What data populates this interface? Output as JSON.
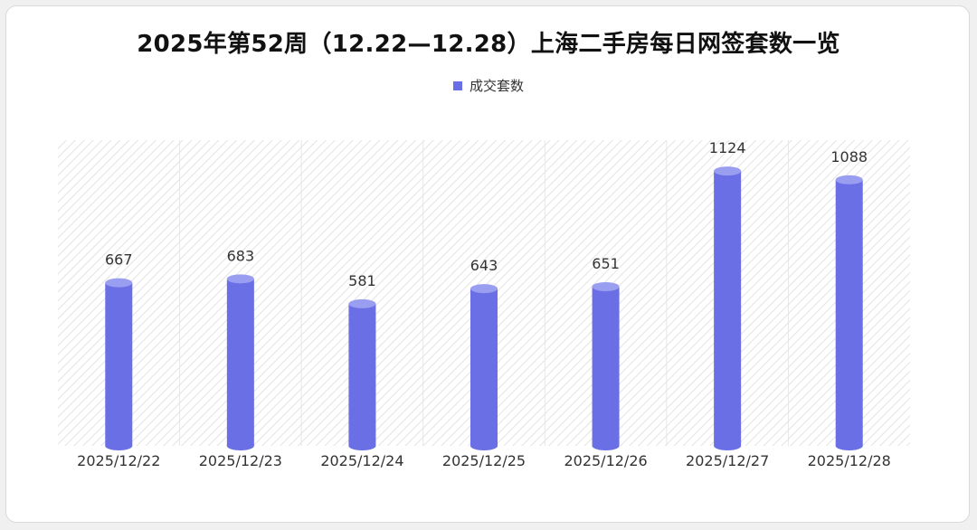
{
  "chart_data": {
    "type": "bar",
    "title": "2025年第52周（12.22—12.28）上海二手房每日网签套数一览",
    "categories": [
      "2025/12/22",
      "2025/12/23",
      "2025/12/24",
      "2025/12/25",
      "2025/12/26",
      "2025/12/27",
      "2025/12/28"
    ],
    "series": [
      {
        "name": "成交套数",
        "values": [
          667,
          683,
          581,
          643,
          651,
          1124,
          1088
        ]
      }
    ],
    "data_labels": [
      "667",
      "683",
      "581",
      "643",
      "651",
      "1124",
      "1088"
    ],
    "ylim": [
      0,
      1250
    ],
    "bar_color": "#6a6fe5",
    "bar_cap_color": "#9a9ef0",
    "legend_position": "top-center",
    "grid": false,
    "background": "diagonal-hatch"
  }
}
